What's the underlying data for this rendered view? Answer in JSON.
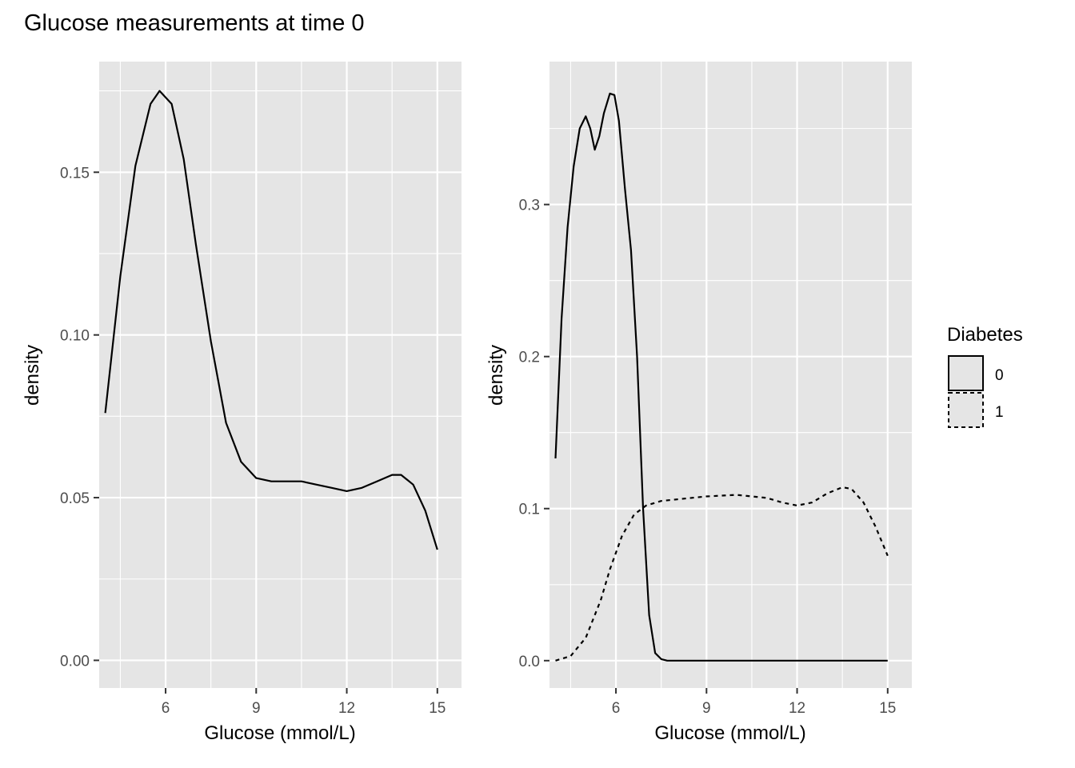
{
  "figure": {
    "title": "Glucose measurements at time 0"
  },
  "colors": {
    "panel_background": "#e5e5e5",
    "grid_line": "#ffffff",
    "axis_text": "#4d4d4d",
    "line": "#000000"
  },
  "chart_data": [
    {
      "type": "line",
      "xlabel": "Glucose (mmol/L)",
      "ylabel": "density",
      "xlim": [
        3.8,
        15.8
      ],
      "ylim": [
        -0.0085,
        0.184
      ],
      "x_ticks": [
        6,
        9,
        12,
        15
      ],
      "x_tick_labels": [
        "6",
        "9",
        "12",
        "15"
      ],
      "y_ticks": [
        0,
        0.05,
        0.1,
        0.15
      ],
      "y_tick_labels": [
        "0.00",
        "0.05",
        "0.10",
        "0.15"
      ],
      "grid": true,
      "series": [
        {
          "linetype": "solid",
          "x": [
            4.0,
            4.5,
            5.0,
            5.5,
            5.8,
            6.2,
            6.6,
            7.0,
            7.5,
            8.0,
            8.5,
            9.0,
            9.5,
            10.0,
            10.5,
            11.0,
            11.5,
            12.0,
            12.5,
            13.0,
            13.5,
            13.8,
            14.2,
            14.6,
            15.0
          ],
          "y": [
            0.076,
            0.118,
            0.152,
            0.171,
            0.175,
            0.171,
            0.154,
            0.128,
            0.098,
            0.073,
            0.061,
            0.056,
            0.055,
            0.055,
            0.055,
            0.054,
            0.053,
            0.052,
            0.053,
            0.055,
            0.057,
            0.057,
            0.054,
            0.046,
            0.034
          ]
        }
      ]
    },
    {
      "type": "line",
      "xlabel": "Glucose (mmol/L)",
      "ylabel": "density",
      "xlim": [
        3.8,
        15.8
      ],
      "ylim": [
        -0.018,
        0.394
      ],
      "x_ticks": [
        6,
        9,
        12,
        15
      ],
      "x_tick_labels": [
        "6",
        "9",
        "12",
        "15"
      ],
      "y_ticks": [
        0,
        0.1,
        0.2,
        0.3
      ],
      "y_tick_labels": [
        "0.0",
        "0.1",
        "0.2",
        "0.3"
      ],
      "grid": true,
      "legend": {
        "title": "Diabetes",
        "position": "right",
        "entries": [
          {
            "label": "0",
            "linetype": "solid"
          },
          {
            "label": "1",
            "linetype": "dashed"
          }
        ]
      },
      "series": [
        {
          "name": "0",
          "linetype": "solid",
          "x": [
            4.0,
            4.2,
            4.4,
            4.6,
            4.8,
            5.0,
            5.15,
            5.3,
            5.45,
            5.6,
            5.8,
            5.95,
            6.1,
            6.3,
            6.5,
            6.7,
            6.9,
            7.1,
            7.3,
            7.5,
            7.7,
            8.0,
            9.0,
            10.0,
            11.0,
            12.0,
            13.0,
            14.0,
            15.0
          ],
          "y": [
            0.133,
            0.225,
            0.285,
            0.325,
            0.35,
            0.358,
            0.35,
            0.336,
            0.345,
            0.36,
            0.373,
            0.372,
            0.355,
            0.31,
            0.27,
            0.2,
            0.1,
            0.03,
            0.005,
            0.001,
            0.0,
            0.0,
            0.0,
            0.0,
            0.0,
            0.0,
            0.0,
            0.0,
            0.0
          ]
        },
        {
          "name": "1",
          "linetype": "dashed",
          "x": [
            4.0,
            4.5,
            5.0,
            5.5,
            5.8,
            6.2,
            6.6,
            7.0,
            7.5,
            8.0,
            9.0,
            10.0,
            11.0,
            11.5,
            12.0,
            12.5,
            13.0,
            13.5,
            13.8,
            14.2,
            14.6,
            15.0
          ],
          "y": [
            0.0,
            0.003,
            0.015,
            0.04,
            0.06,
            0.082,
            0.096,
            0.102,
            0.105,
            0.106,
            0.108,
            0.109,
            0.107,
            0.104,
            0.102,
            0.104,
            0.11,
            0.114,
            0.113,
            0.104,
            0.088,
            0.069
          ]
        }
      ]
    }
  ]
}
